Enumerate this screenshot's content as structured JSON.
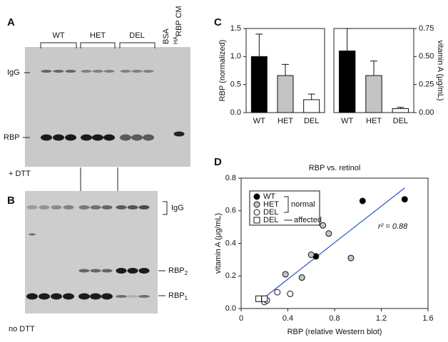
{
  "panel_labels": {
    "a": "A",
    "b": "B",
    "c": "C",
    "d": "D"
  },
  "blot_a": {
    "groups": [
      "WT",
      "HET",
      "DEL"
    ],
    "lane_bsa": "BSA",
    "lane_ha_prefix": "HA",
    "lane_ha_text": "RBP CM",
    "band_igg": "IgG",
    "band_rbp": "RBP",
    "condition": "+ DTT"
  },
  "blot_b": {
    "band_igg": "IgG",
    "band_rbp2": "RBP",
    "band_rbp2_sub": "2",
    "band_rbp1": "RBP",
    "band_rbp1_sub": "1",
    "condition": "no DTT"
  },
  "chart_data": [
    {
      "type": "bar",
      "ylabel": "RBP (normalized)",
      "categories": [
        "WT",
        "HET",
        "DEL"
      ],
      "values": [
        1.0,
        0.66,
        0.23
      ],
      "errors": [
        0.4,
        0.2,
        0.1
      ],
      "colors": [
        "#000000",
        "#c4c4c4",
        "#ffffff"
      ],
      "ylim": [
        0,
        1.5
      ],
      "yticks": [
        {
          "value": 0,
          "label": "0.0"
        },
        0.5,
        {
          "value": 1,
          "label": "1.0"
        },
        1.5
      ],
      "y_axis_position": "left"
    },
    {
      "type": "bar",
      "ylabel": "vitamin A (μg/mL)",
      "categories": [
        "WT",
        "HET",
        "DEL"
      ],
      "values": [
        0.55,
        0.33,
        0.035
      ],
      "errors": [
        0.2,
        0.13,
        0.012
      ],
      "colors": [
        "#000000",
        "#c4c4c4",
        "#ffffff"
      ],
      "ylim": [
        0,
        0.75
      ],
      "yticks": [
        {
          "value": 0,
          "label": "0.00"
        },
        0.25,
        {
          "value": 0.5,
          "label": "0.50"
        },
        0.75
      ],
      "y_axis_position": "right"
    },
    {
      "type": "scatter",
      "title": "RBP vs. retinol",
      "xlabel": "RBP (relative Western blot)",
      "ylabel": "vitamin A (μg/mL)",
      "xlim": [
        0,
        1.6
      ],
      "xticks": [
        0,
        0.4,
        0.8,
        1.2,
        1.6
      ],
      "ylim": [
        0,
        0.8
      ],
      "yticks": [
        {
          "value": 0,
          "label": "0.0"
        },
        0.2,
        0.4,
        0.6,
        0.8
      ],
      "series": [
        {
          "name": "WT",
          "marker": "circle",
          "color": "#000000",
          "x": [
            0.64,
            1.04,
            1.4
          ],
          "values": [
            0.32,
            0.66,
            0.67
          ]
        },
        {
          "name": "HET",
          "marker": "circle",
          "color": "#c4c4c4",
          "x": [
            0.38,
            0.52,
            0.6,
            0.7,
            0.75,
            0.94
          ],
          "values": [
            0.21,
            0.19,
            0.33,
            0.51,
            0.46,
            0.31
          ]
        },
        {
          "name": "DEL",
          "marker": "circle",
          "color": "#ffffff",
          "x": [
            0.2,
            0.22,
            0.31,
            0.42
          ],
          "values": [
            0.04,
            0.05,
            0.1,
            0.09
          ]
        },
        {
          "name": "DEL",
          "marker": "square",
          "color": "#ffffff",
          "x": [
            0.15,
            0.2
          ],
          "values": [
            0.06,
            0.06
          ]
        }
      ],
      "legend_groups": [
        "normal",
        "affected"
      ],
      "fit_line": {
        "x": [
          0.15,
          1.4
        ],
        "y": [
          0.04,
          0.74
        ],
        "color": "#2b55c8"
      },
      "annotation": "r² = 0.88"
    }
  ]
}
